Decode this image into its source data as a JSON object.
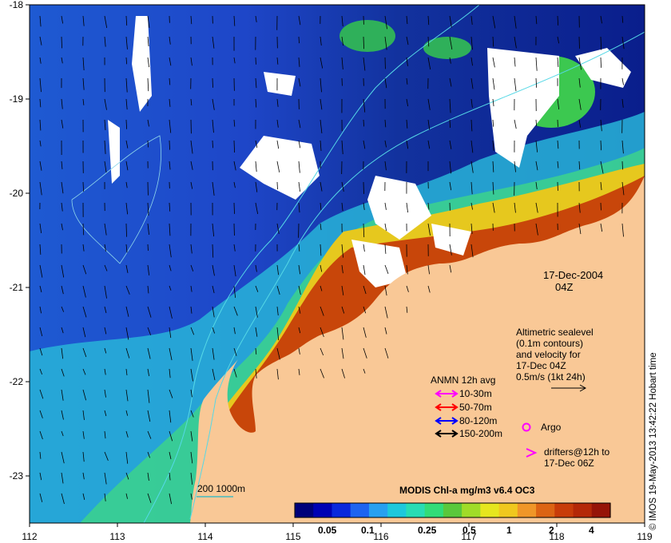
{
  "map": {
    "date": "17-Dec-2004",
    "time": "04Z",
    "x_ticks": [
      "112",
      "113",
      "114",
      "115",
      "116",
      "117",
      "118",
      "119"
    ],
    "y_ticks": [
      "-18",
      "-19",
      "-20",
      "-21",
      "-22",
      "-23"
    ],
    "x_range": [
      112,
      119
    ],
    "y_range": [
      -23.5,
      -18
    ]
  },
  "altimetry": {
    "lines": [
      "Altimetric sealevel",
      "(0.1m contours)",
      "and velocity for",
      "17-Dec 04Z",
      "0.5m/s (1kt 24h)"
    ]
  },
  "anmn": {
    "title": "ANMN 12h avg",
    "items": [
      {
        "label": "10-30m",
        "color": "#ff00ff"
      },
      {
        "label": "50-70m",
        "color": "#ff0000"
      },
      {
        "label": "80-120m",
        "color": "#0000ff"
      },
      {
        "label": "150-200m",
        "color": "#000000"
      }
    ]
  },
  "argo": {
    "label": "Argo",
    "color": "#ff00ff"
  },
  "drifters": {
    "lines": [
      "drifters@12h to",
      "17-Dec 06Z"
    ],
    "color": "#ff00ff"
  },
  "isobath": {
    "label": "200  1000m",
    "color": "#22b8c8"
  },
  "colorbar": {
    "title": "MODIS Chl-a mg/m3 v6.4 OC3",
    "tick_labels": [
      "0.05",
      "0.1",
      "0.25",
      "0.5",
      "1",
      "2",
      "4"
    ],
    "colors": [
      "#00007a",
      "#0000b4",
      "#0a28dc",
      "#1e64f0",
      "#28a0f0",
      "#1ec8dc",
      "#28dcb4",
      "#32dc78",
      "#5ac83c",
      "#a0dc28",
      "#e6e61e",
      "#f0c81e",
      "#f09628",
      "#dc6414",
      "#c83c0a",
      "#b42808",
      "#961408"
    ]
  },
  "credit": "© IMOS 19-May-2013 13:42:22 Hobart time",
  "colors": {
    "land": "#f9c896",
    "deep_ocean": "#0a1e8c",
    "cloud": "#ffffff"
  }
}
